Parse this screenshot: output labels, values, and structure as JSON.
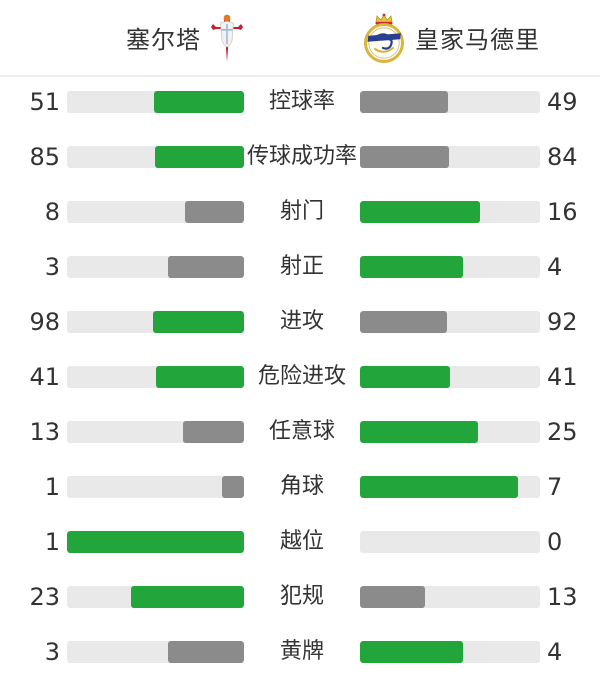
{
  "header": {
    "home": {
      "name": "塞尔塔",
      "crest": "celta-vigo-crest"
    },
    "away": {
      "name": "皇家马德里",
      "crest": "real-madrid-crest"
    }
  },
  "colors": {
    "winner_bar": "#22a53a",
    "loser_bar": "#8b8b8b",
    "bar_track": "#e9e9e9",
    "text": "#333333",
    "celta_red": "#c51f2e",
    "madrid_gold": "#d9b53c",
    "madrid_blue": "#2a3f8f"
  },
  "stats": [
    {
      "label": "控球率",
      "home": 51,
      "away": 49
    },
    {
      "label": "传球成功率",
      "home": 85,
      "away": 84
    },
    {
      "label": "射门",
      "home": 8,
      "away": 16
    },
    {
      "label": "射正",
      "home": 3,
      "away": 4
    },
    {
      "label": "进攻",
      "home": 98,
      "away": 92
    },
    {
      "label": "危险进攻",
      "home": 41,
      "away": 41
    },
    {
      "label": "任意球",
      "home": 13,
      "away": 25
    },
    {
      "label": "角球",
      "home": 1,
      "away": 7
    },
    {
      "label": "越位",
      "home": 1,
      "away": 0
    },
    {
      "label": "犯规",
      "home": 23,
      "away": 13
    },
    {
      "label": "黄牌",
      "home": 3,
      "away": 4
    }
  ]
}
